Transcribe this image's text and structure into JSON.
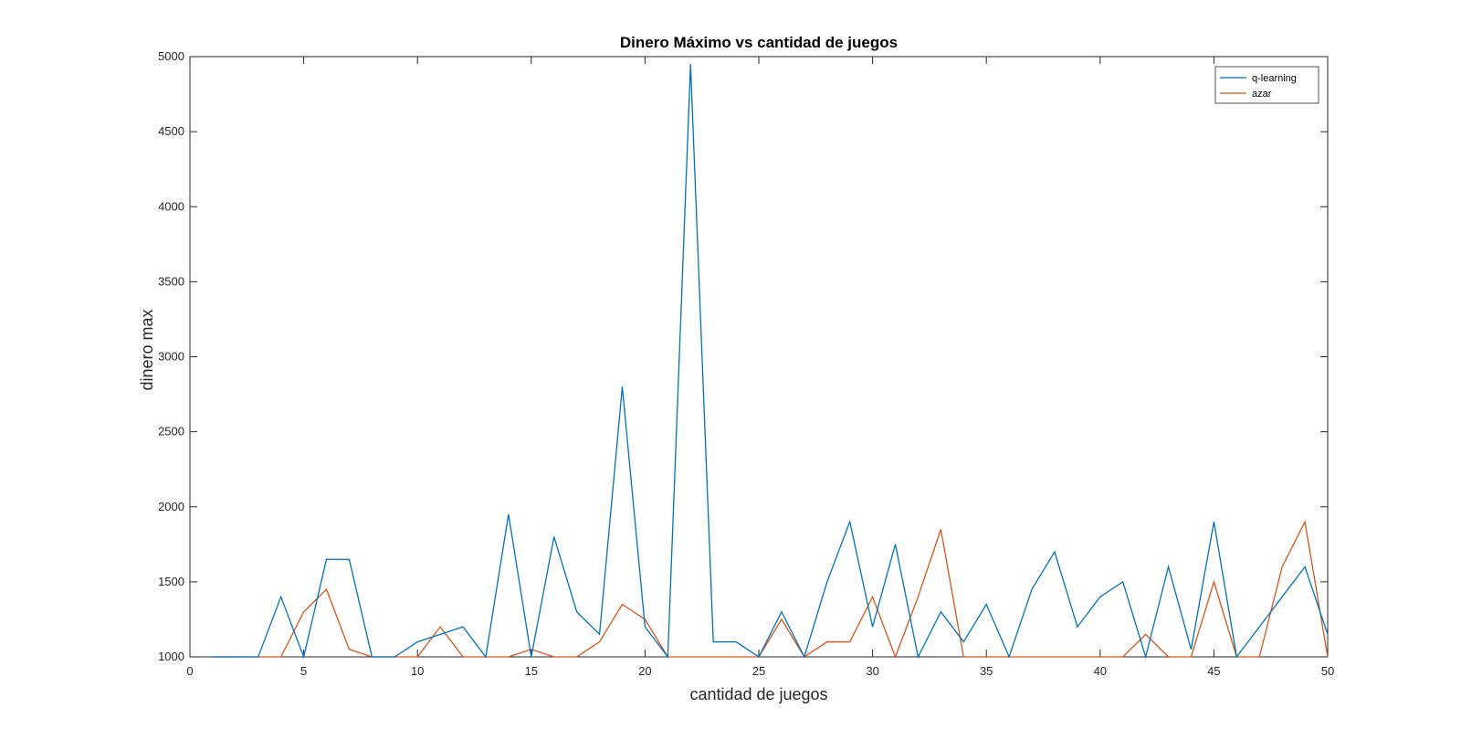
{
  "chart_data": {
    "type": "line",
    "title": "Dinero Máximo vs cantidad de juegos",
    "xlabel": "cantidad de juegos",
    "ylabel": "dinero max",
    "xlim": [
      0,
      50
    ],
    "ylim": [
      1000,
      5000
    ],
    "xticks": [
      0,
      5,
      10,
      15,
      20,
      25,
      30,
      35,
      40,
      45,
      50
    ],
    "yticks": [
      1000,
      1500,
      2000,
      2500,
      3000,
      3500,
      4000,
      4500,
      5000
    ],
    "grid": false,
    "legend_position": "top-right",
    "colors": {
      "q-learning": "#0072BD",
      "azar": "#D95319"
    },
    "series": [
      {
        "name": "q-learning",
        "x": [
          1,
          2,
          3,
          4,
          5,
          6,
          7,
          8,
          9,
          10,
          11,
          12,
          13,
          14,
          15,
          16,
          17,
          18,
          19,
          20,
          21,
          22,
          23,
          24,
          25,
          26,
          27,
          28,
          29,
          30,
          31,
          32,
          33,
          34,
          35,
          36,
          37,
          38,
          39,
          40,
          41,
          42,
          43,
          44,
          45,
          46,
          47,
          48,
          49,
          50
        ],
        "y": [
          1000,
          1000,
          1000,
          1400,
          1000,
          1650,
          1650,
          1000,
          1000,
          1100,
          1150,
          1200,
          1000,
          1950,
          1000,
          1800,
          1300,
          1150,
          2800,
          1200,
          1000,
          4950,
          1100,
          1100,
          1000,
          1300,
          1000,
          1500,
          1900,
          1200,
          1750,
          1000,
          1300,
          1100,
          1350,
          1000,
          1450,
          1700,
          1200,
          1400,
          1500,
          1000,
          1600,
          1050,
          1900,
          1000,
          1200,
          1400,
          1600,
          1150
        ]
      },
      {
        "name": "azar",
        "x": [
          1,
          2,
          3,
          4,
          5,
          6,
          7,
          8,
          9,
          10,
          11,
          12,
          13,
          14,
          15,
          16,
          17,
          18,
          19,
          20,
          21,
          22,
          23,
          24,
          25,
          26,
          27,
          28,
          29,
          30,
          31,
          32,
          33,
          34,
          35,
          36,
          37,
          38,
          39,
          40,
          41,
          42,
          43,
          44,
          45,
          46,
          47,
          48,
          49,
          50
        ],
        "y": [
          1000,
          1000,
          1000,
          1000,
          1300,
          1450,
          1050,
          1000,
          1000,
          1000,
          1200,
          1000,
          1000,
          1000,
          1050,
          1000,
          1000,
          1100,
          1350,
          1250,
          1000,
          1000,
          1000,
          1000,
          1000,
          1250,
          1000,
          1100,
          1100,
          1400,
          1000,
          1400,
          1850,
          1000,
          1000,
          1000,
          1000,
          1000,
          1000,
          1000,
          1000,
          1150,
          1000,
          1000,
          1500,
          1000,
          1000,
          1600,
          1900,
          1000
        ]
      }
    ]
  }
}
